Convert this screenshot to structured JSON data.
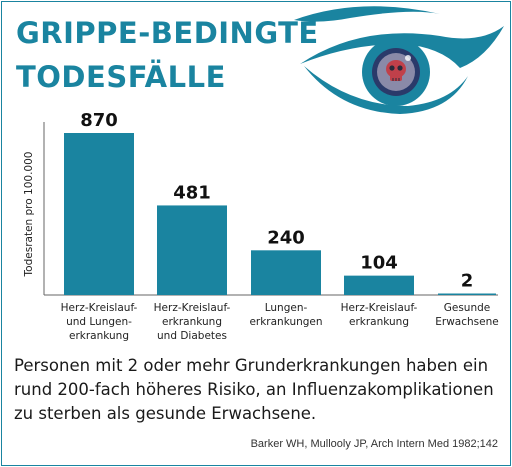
{
  "title_lines": [
    "GRIPPE-BEDINGTE",
    "TODESFÄLLE"
  ],
  "caption": "Personen mit 2 oder mehr Grunderkrankungen haben ein rund 200-fach höheres Risiko, an Influenzakomplikationen zu sterben als gesunde Erwachsene.",
  "source": "Barker WH, Mullooly JP, Arch Intern Med 1982;142",
  "colors": {
    "accent": "#1a84a0",
    "text": "#1a1a1a"
  },
  "icons": {
    "eye": "eye-with-skull-iris-icon"
  },
  "chart_data": {
    "type": "bar",
    "title": "GRIPPE-BEDINGTE TODESFÄLLE",
    "ylabel": "Todesraten pro 100.000",
    "xlabel": "",
    "ylim": [
      0,
      870
    ],
    "grid": false,
    "categories": [
      [
        "Herz-Kreislauf-",
        "und Lungen-",
        "erkrankung"
      ],
      [
        "Herz-Kreislauf-",
        "erkrankung",
        "und Diabetes"
      ],
      [
        "Lungen-",
        "erkrankungen"
      ],
      [
        "Herz-Kreislauf-",
        "erkrankung"
      ],
      [
        "Gesunde",
        "Erwachsene"
      ]
    ],
    "values": [
      870,
      481,
      240,
      104,
      2
    ],
    "data_labels": [
      "870",
      "481",
      "240",
      "104",
      "2"
    ]
  }
}
